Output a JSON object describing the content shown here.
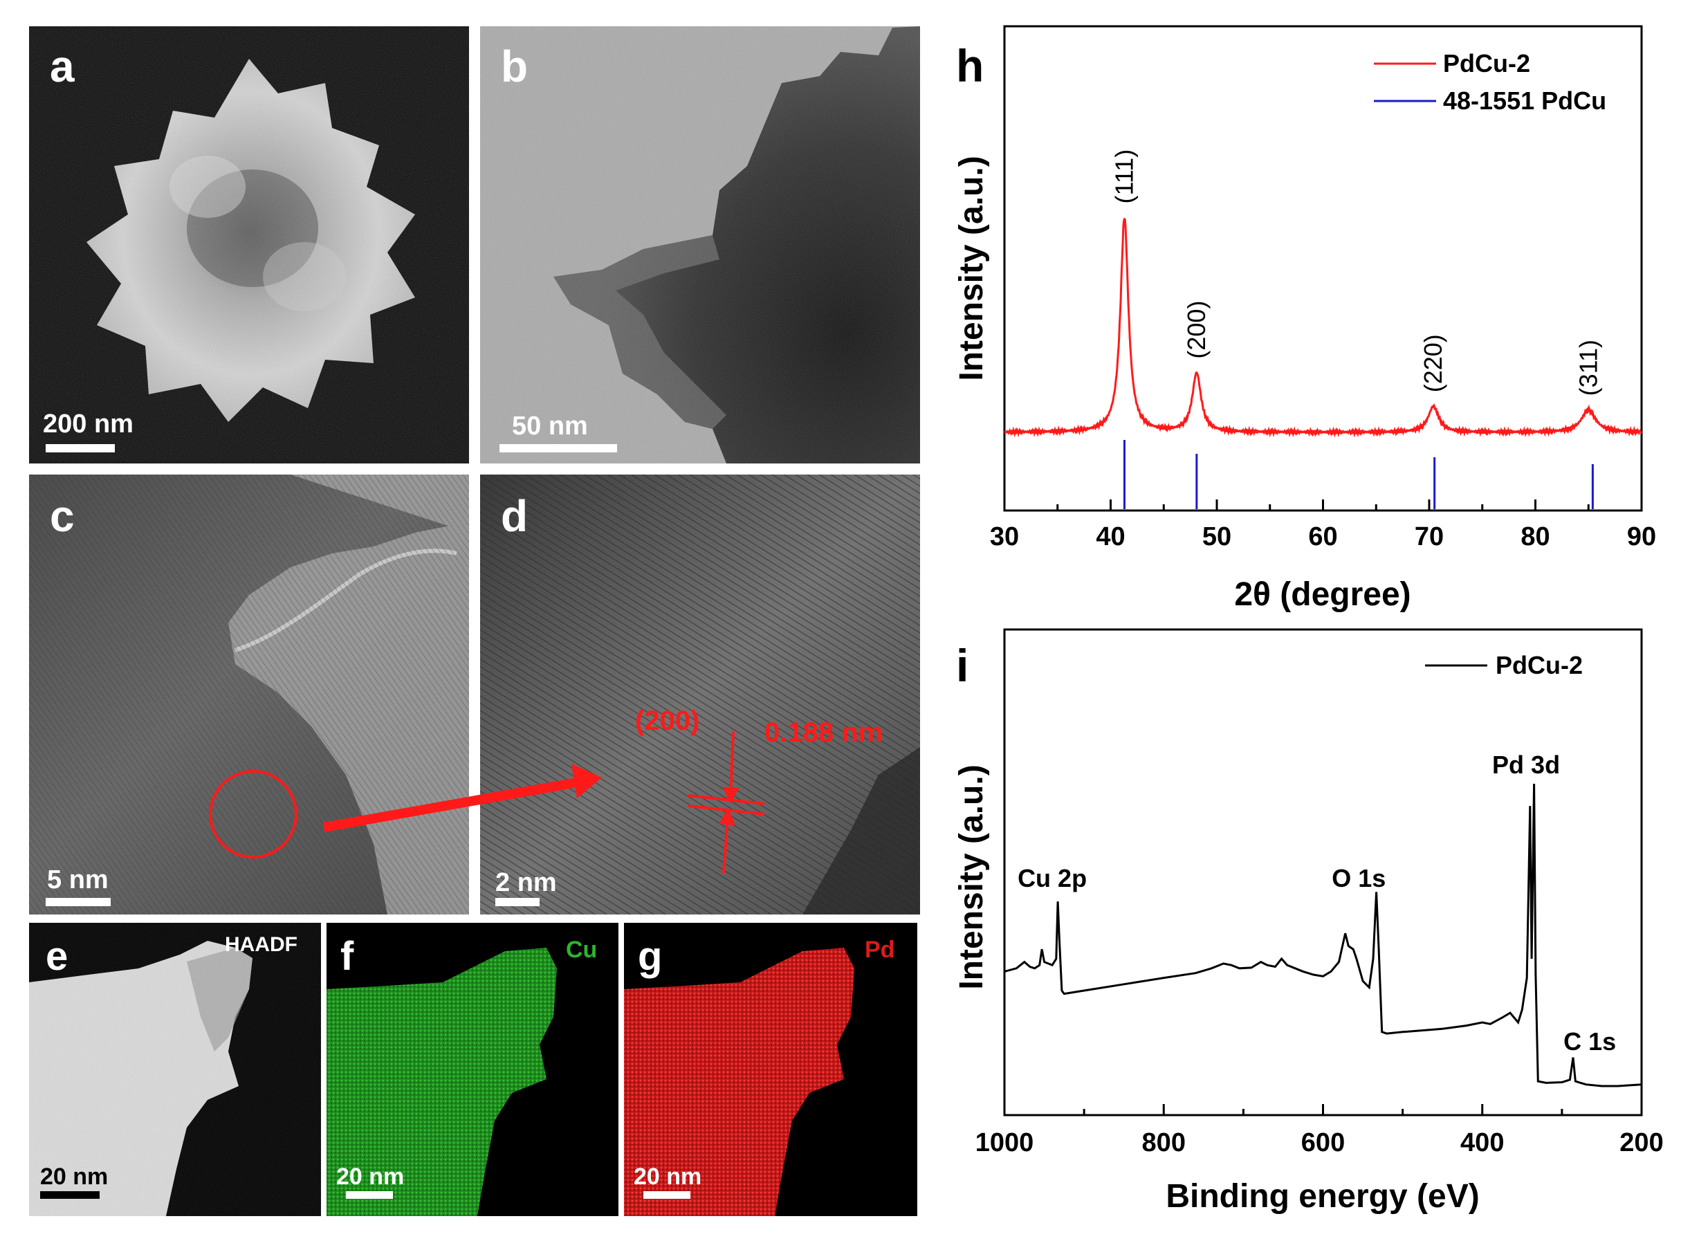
{
  "panels": {
    "a": {
      "letter": "a",
      "scale": "200 nm"
    },
    "b": {
      "letter": "b",
      "scale": "50 nm"
    },
    "c": {
      "letter": "c",
      "scale": "5 nm"
    },
    "d": {
      "letter": "d",
      "scale": "2 nm",
      "plane": "(200)",
      "spacing": "0.188 nm"
    },
    "e": {
      "letter": "e",
      "scale": "20 nm",
      "tag": "HAADF"
    },
    "f": {
      "letter": "f",
      "scale": "20 nm",
      "tag": "Cu"
    },
    "g": {
      "letter": "g",
      "scale": "20 nm",
      "tag": "Pd"
    }
  },
  "colors": {
    "pdcu": "#ff1a1a",
    "reference": "#1a1acc",
    "xps": "#000000",
    "cu_map": "#1fa51f",
    "pd_map": "#dd1a1a"
  },
  "chart_data": [
    {
      "id": "h",
      "letter": "h",
      "type": "line",
      "xlabel": "2θ (degree)",
      "ylabel": "Intensity (a.u.)",
      "xlim": [
        30,
        90
      ],
      "xticks": [
        30,
        40,
        50,
        60,
        70,
        80,
        90
      ],
      "legend": [
        "PdCu-2",
        "48-1551 PdCu"
      ],
      "legend_position": "top-right",
      "series": [
        {
          "name": "PdCu-2",
          "peaks": [
            {
              "x": 41.3,
              "height": 0.62,
              "width": 0.45
            },
            {
              "x": 48.1,
              "height": 0.17,
              "width": 0.5
            },
            {
              "x": 70.4,
              "height": 0.075,
              "width": 0.6
            },
            {
              "x": 85.0,
              "height": 0.065,
              "width": 0.8
            }
          ]
        },
        {
          "name": "48-1551 PdCu",
          "type": "stick",
          "positions": [
            41.3,
            48.1,
            70.5,
            85.4
          ],
          "heights": [
            1.0,
            0.8,
            0.75,
            0.65
          ]
        }
      ],
      "annotations": [
        {
          "text": "(111)",
          "x": 41.3
        },
        {
          "text": "(200)",
          "x": 48.1
        },
        {
          "text": "(220)",
          "x": 70.4
        },
        {
          "text": "(311)",
          "x": 85.0
        }
      ]
    },
    {
      "id": "i",
      "letter": "i",
      "type": "line",
      "xlabel": "Binding energy (eV)",
      "ylabel": "Intensity (a.u.)",
      "xlim": [
        1000,
        200
      ],
      "xticks": [
        1000,
        800,
        600,
        400,
        200
      ],
      "legend": [
        "PdCu-2"
      ],
      "legend_position": "top-right",
      "series": [
        {
          "name": "PdCu-2",
          "points": [
            [
              1000,
              0.36
            ],
            [
              985,
              0.37
            ],
            [
              975,
              0.39
            ],
            [
              968,
              0.375
            ],
            [
              962,
              0.37
            ],
            [
              956,
              0.38
            ],
            [
              953,
              0.43
            ],
            [
              950,
              0.39
            ],
            [
              945,
              0.385
            ],
            [
              940,
              0.38
            ],
            [
              935,
              0.4
            ],
            [
              933,
              0.58
            ],
            [
              931,
              0.46
            ],
            [
              928,
              0.3
            ],
            [
              925,
              0.29
            ],
            [
              900,
              0.3
            ],
            [
              850,
              0.32
            ],
            [
              800,
              0.34
            ],
            [
              760,
              0.355
            ],
            [
              740,
              0.37
            ],
            [
              725,
              0.385
            ],
            [
              715,
              0.38
            ],
            [
              705,
              0.37
            ],
            [
              690,
              0.372
            ],
            [
              678,
              0.39
            ],
            [
              670,
              0.38
            ],
            [
              660,
              0.375
            ],
            [
              652,
              0.4
            ],
            [
              645,
              0.38
            ],
            [
              635,
              0.37
            ],
            [
              625,
              0.36
            ],
            [
              612,
              0.35
            ],
            [
              600,
              0.345
            ],
            [
              590,
              0.36
            ],
            [
              580,
              0.39
            ],
            [
              572,
              0.48
            ],
            [
              568,
              0.44
            ],
            [
              562,
              0.43
            ],
            [
              558,
              0.4
            ],
            [
              550,
              0.33
            ],
            [
              542,
              0.31
            ],
            [
              537,
              0.4
            ],
            [
              533,
              0.61
            ],
            [
              530,
              0.43
            ],
            [
              526,
              0.17
            ],
            [
              520,
              0.165
            ],
            [
              500,
              0.17
            ],
            [
              450,
              0.18
            ],
            [
              420,
              0.19
            ],
            [
              400,
              0.2
            ],
            [
              390,
              0.195
            ],
            [
              375,
              0.215
            ],
            [
              365,
              0.23
            ],
            [
              355,
              0.2
            ],
            [
              350,
              0.24
            ],
            [
              344,
              0.34
            ],
            [
              340,
              0.88
            ],
            [
              338,
              0.4
            ],
            [
              335,
              0.95
            ],
            [
              333,
              0.35
            ],
            [
              330,
              0.015
            ],
            [
              320,
              0.01
            ],
            [
              300,
              0.012
            ],
            [
              290,
              0.02
            ],
            [
              286,
              0.09
            ],
            [
              283,
              0.015
            ],
            [
              270,
              0.005
            ],
            [
              250,
              0.0
            ],
            [
              230,
              0.0
            ],
            [
              200,
              0.005
            ]
          ]
        }
      ],
      "annotations": [
        {
          "text": "Cu 2p",
          "x": 940
        },
        {
          "text": "O 1s",
          "x": 555
        },
        {
          "text": "Pd 3d",
          "x": 345
        },
        {
          "text": "C 1s",
          "x": 265
        }
      ]
    }
  ]
}
